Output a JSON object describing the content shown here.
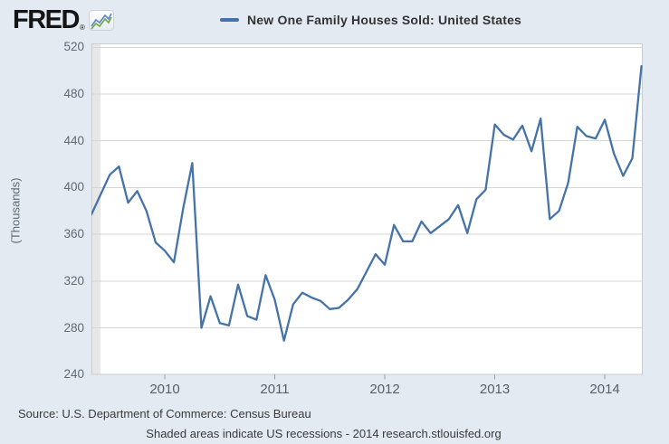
{
  "header": {
    "logo_text": "FRED",
    "logo_registered": "®",
    "legend": {
      "label": "New One Family Houses Sold: United States"
    }
  },
  "y_axis": {
    "unit_label": "(Thousands)",
    "ticks": [
      "520",
      "480",
      "440",
      "400",
      "360",
      "320",
      "280",
      "240"
    ]
  },
  "x_axis": {
    "ticks": [
      "2010",
      "2011",
      "2012",
      "2013",
      "2014"
    ]
  },
  "footer": {
    "source_line": "Source: U.S. Department of Commerce: Census Bureau",
    "note_line": "Shaded areas indicate US recessions - 2014 research.stlouisfed.org"
  },
  "colors": {
    "background": "#e3eaf2",
    "plot_background": "#ffffff",
    "series_line": "#4572a7",
    "gridline": "#d6d6d6",
    "recession_band": "#e7e7e7",
    "axis_border": "#c8cdd1",
    "tick_mark": "#9aa0a6"
  },
  "chart_data": {
    "type": "line",
    "title": "New One Family Houses Sold: United States",
    "ylabel": "(Thousands)",
    "ylim": [
      240,
      523
    ],
    "y_tick_values": [
      240,
      280,
      320,
      360,
      400,
      440,
      480,
      520
    ],
    "x_tick_labels": [
      "2010",
      "2011",
      "2012",
      "2013",
      "2014"
    ],
    "grid": true,
    "legend_position": "top",
    "series_name": "New One Family Houses Sold: United States",
    "recession_bands": [
      [
        "2009-05",
        "2009-06"
      ]
    ],
    "x": [
      "2009-05",
      "2009-06",
      "2009-07",
      "2009-08",
      "2009-09",
      "2009-10",
      "2009-11",
      "2009-12",
      "2010-01",
      "2010-02",
      "2010-03",
      "2010-04",
      "2010-05",
      "2010-06",
      "2010-07",
      "2010-08",
      "2010-09",
      "2010-10",
      "2010-11",
      "2010-12",
      "2011-01",
      "2011-02",
      "2011-03",
      "2011-04",
      "2011-05",
      "2011-06",
      "2011-07",
      "2011-08",
      "2011-09",
      "2011-10",
      "2011-11",
      "2011-12",
      "2012-01",
      "2012-02",
      "2012-03",
      "2012-04",
      "2012-05",
      "2012-06",
      "2012-07",
      "2012-08",
      "2012-09",
      "2012-10",
      "2012-11",
      "2012-12",
      "2013-01",
      "2013-02",
      "2013-03",
      "2013-04",
      "2013-05",
      "2013-06",
      "2013-07",
      "2013-08",
      "2013-09",
      "2013-10",
      "2013-11",
      "2013-12",
      "2014-01",
      "2014-02",
      "2014-03",
      "2014-04",
      "2014-05"
    ],
    "values": [
      377,
      394,
      411,
      418,
      387,
      397,
      380,
      353,
      346,
      336,
      382,
      421,
      280,
      307,
      284,
      282,
      317,
      290,
      287,
      325,
      304,
      269,
      300,
      310,
      306,
      303,
      296,
      297,
      304,
      313,
      328,
      343,
      334,
      368,
      354,
      354,
      371,
      361,
      367,
      373,
      385,
      361,
      390,
      398,
      454,
      445,
      441,
      453,
      431,
      459,
      373,
      380,
      404,
      452,
      444,
      442,
      458,
      429,
      410,
      425,
      504
    ]
  }
}
